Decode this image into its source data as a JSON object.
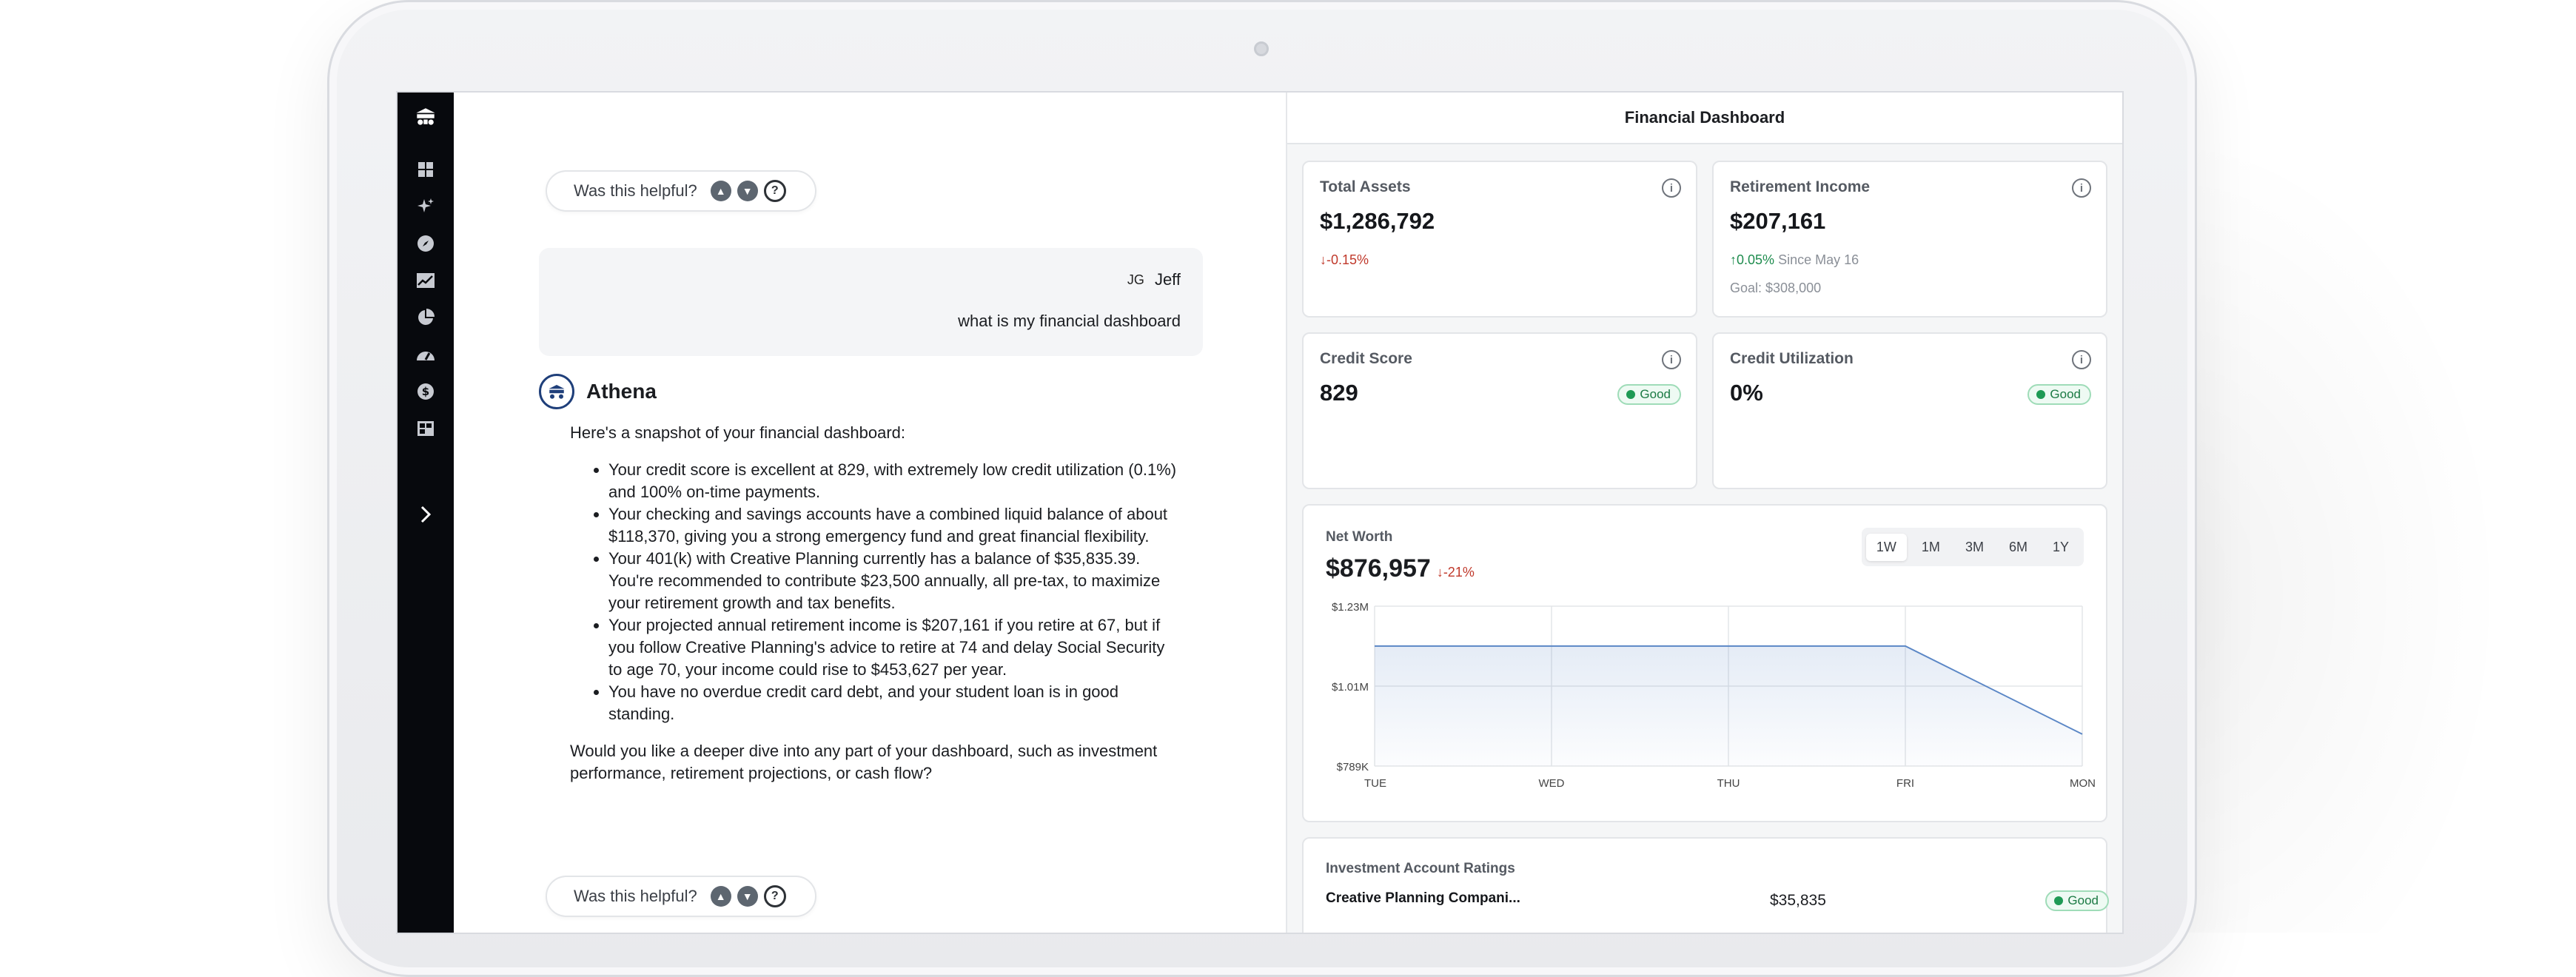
{
  "sidebar": {
    "items": [
      {
        "icon": "logo-icon"
      },
      {
        "icon": "grid-icon"
      },
      {
        "icon": "sparkle-icon"
      },
      {
        "icon": "compass-icon"
      },
      {
        "icon": "chart-line-icon"
      },
      {
        "icon": "pie-chart-icon"
      },
      {
        "icon": "gauge-icon"
      },
      {
        "icon": "dollar-icon"
      },
      {
        "icon": "table-icon"
      },
      {
        "icon": "chevron-right-icon"
      }
    ]
  },
  "chat": {
    "helpful_label": "Was this helpful?",
    "user": {
      "initials": "JG",
      "name": "Jeff",
      "message": "what is my financial dashboard"
    },
    "assistant": {
      "name": "Athena",
      "intro": "Here's a snapshot of your financial dashboard:",
      "bullets": [
        "Your credit score is excellent at 829, with extremely low credit utilization (0.1%) and 100% on-time payments.",
        "Your checking and savings accounts have a combined liquid balance of about $118,370, giving you a strong emergency fund and great financial flexibility.",
        "Your 401(k) with Creative Planning currently has a balance of $35,835.39. You're recommended to contribute $23,500 annually, all pre-tax, to maximize your retirement growth and tax benefits.",
        "Your projected annual retirement income is $207,161 if you retire at 67, but if you follow Creative Planning's advice to retire at 74 and delay Social Security to age 70, your income could rise to $453,627 per year.",
        "You have no overdue credit card debt, and your student loan is in good standing."
      ],
      "outro": "Would you like a deeper dive into any part of your dashboard, such as investment performance, retirement projections, or cash flow?"
    }
  },
  "dashboard": {
    "title": "Financial Dashboard",
    "total_assets": {
      "label": "Total Assets",
      "value": "$1,286,792",
      "change": "-0.15%"
    },
    "retirement_income": {
      "label": "Retirement Income",
      "value": "$207,161",
      "change": "0.05%",
      "since": "Since May 16",
      "goal": "Goal: $308,000"
    },
    "credit_score": {
      "label": "Credit Score",
      "value": "829",
      "badge": "Good"
    },
    "credit_utilization": {
      "label": "Credit Utilization",
      "value": "0%",
      "badge": "Good"
    },
    "net_worth": {
      "label": "Net Worth",
      "value": "$876,957",
      "change": "-21%",
      "ranges": [
        "1W",
        "1M",
        "3M",
        "6M",
        "1Y"
      ],
      "active_range": "1W"
    },
    "investment": {
      "title": "Investment Account Ratings",
      "row": {
        "name": "Creative Planning Compani...",
        "value": "$35,835",
        "badge": "Good"
      }
    }
  },
  "chart_data": {
    "type": "area",
    "x": [
      "TUE",
      "WED",
      "THU",
      "FRI",
      "MON"
    ],
    "series": [
      {
        "values": [
          1.12,
          1.12,
          1.12,
          1.12,
          0.877
        ]
      }
    ],
    "y_unit": "$M",
    "ytick_labels": [
      "$1.23M",
      "$1.01M",
      "$789K"
    ],
    "ylim": [
      0.789,
      1.23
    ],
    "grid": true,
    "color": "#5b87c6"
  }
}
